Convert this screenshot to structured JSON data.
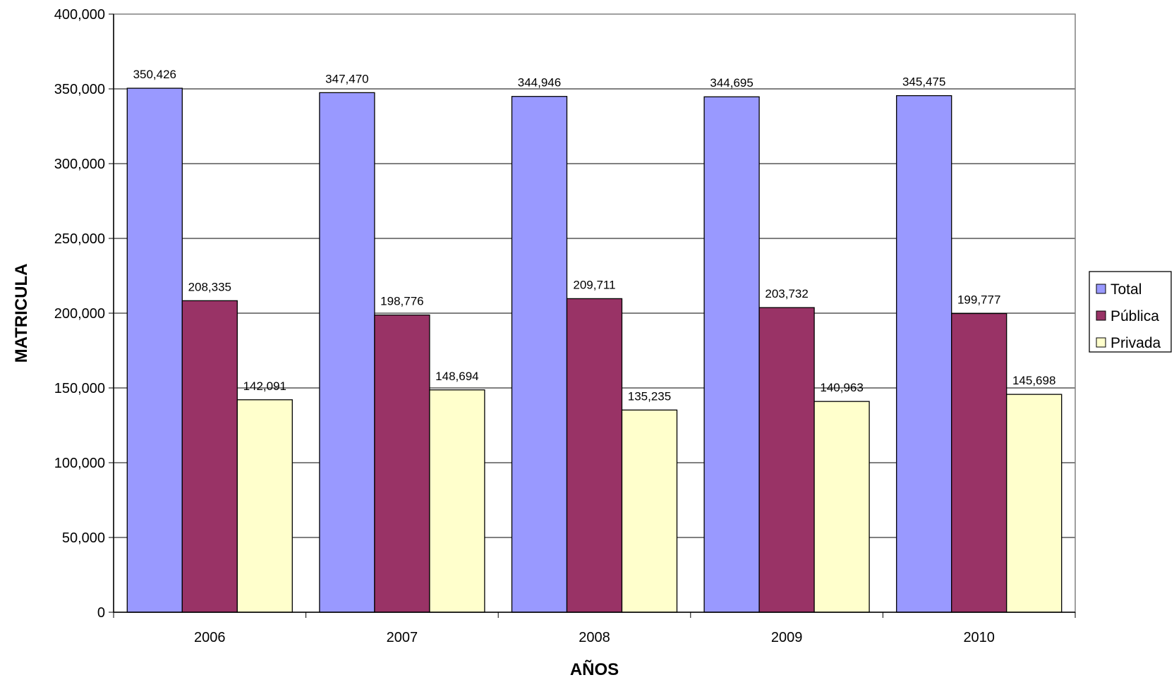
{
  "chart_data": {
    "type": "bar",
    "title": "",
    "xlabel": "AÑOS",
    "ylabel": "MATRICULA",
    "categories": [
      "2006",
      "2007",
      "2008",
      "2009",
      "2010"
    ],
    "ylim": [
      0,
      400000
    ],
    "yticks": [
      0,
      50000,
      100000,
      150000,
      200000,
      250000,
      300000,
      350000,
      400000
    ],
    "ytick_labels": [
      "0",
      "50,000",
      "100,000",
      "150,000",
      "200,000",
      "250,000",
      "300,000",
      "350,000",
      "400,000"
    ],
    "grid": true,
    "legend_position": "right",
    "series": [
      {
        "name": "Total",
        "color": "#9999FF",
        "values": [
          350426,
          347470,
          344946,
          344695,
          345475
        ],
        "labels": [
          "350,426",
          "347,470",
          "344,946",
          "344,695",
          "345,475"
        ]
      },
      {
        "name": "Pública",
        "color": "#993366",
        "values": [
          208335,
          198776,
          209711,
          203732,
          199777
        ],
        "labels": [
          "208,335",
          "198,776",
          "209,711",
          "203,732",
          "199,777"
        ]
      },
      {
        "name": "Privada",
        "color": "#FFFFCC",
        "values": [
          142091,
          148694,
          135235,
          140963,
          145698
        ],
        "labels": [
          "142,091",
          "148,694",
          "135,235",
          "140,963",
          "145,698"
        ]
      }
    ]
  }
}
